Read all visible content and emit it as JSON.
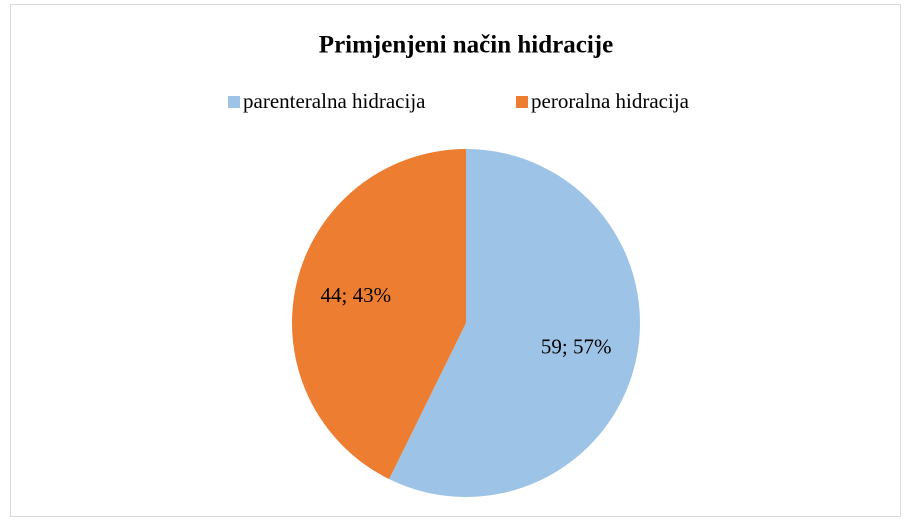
{
  "chart_data": {
    "type": "pie",
    "title": "Primjenjeni način hidracije",
    "categories": [
      "parenteralna hidracija",
      "peroralna hidracija"
    ],
    "values": [
      59,
      44
    ],
    "value_labels": [
      "59; 57%",
      "44; 43%"
    ],
    "colors": [
      "#9dc3e6",
      "#ed7d31"
    ],
    "legend": "top"
  }
}
